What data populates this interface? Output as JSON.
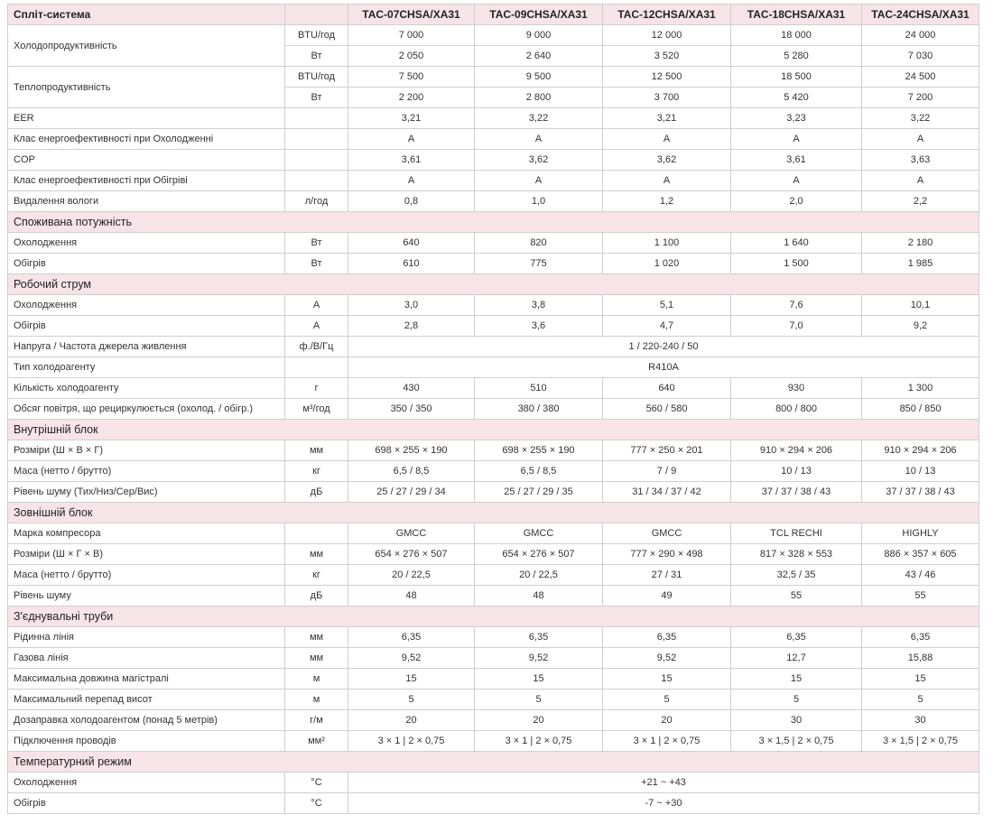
{
  "header": {
    "title": "Спліт-система",
    "models": [
      "TAC-07CHSA/XA31",
      "TAC-09CHSA/XA31",
      "TAC-12CHSA/XA31",
      "TAC-18CHSA/XA31",
      "TAC-24CHSA/XA31"
    ]
  },
  "rows": [
    {
      "type": "row",
      "label": "Холодопродуктивність",
      "unit": "BTU/год",
      "values": [
        "7 000",
        "9 000",
        "12 000",
        "18 000",
        "24 000"
      ],
      "group": "start"
    },
    {
      "type": "row",
      "unit": "Вт",
      "values": [
        "2 050",
        "2 640",
        "3 520",
        "5 280",
        "7 030"
      ],
      "group": "cont"
    },
    {
      "type": "row",
      "label": "Теплопродуктивність",
      "unit": "BTU/год",
      "values": [
        "7 500",
        "9 500",
        "12 500",
        "18 500",
        "24 500"
      ],
      "group": "start"
    },
    {
      "type": "row",
      "unit": "Вт",
      "values": [
        "2 200",
        "2 800",
        "3 700",
        "5 420",
        "7 200"
      ],
      "group": "cont"
    },
    {
      "type": "row",
      "label": "EER",
      "unit": "",
      "values": [
        "3,21",
        "3,22",
        "3,21",
        "3,23",
        "3,22"
      ]
    },
    {
      "type": "row",
      "label": "Клас енергоефективності при Охолодженні",
      "unit": "",
      "values": [
        "A",
        "A",
        "A",
        "A",
        "A"
      ]
    },
    {
      "type": "row",
      "label": "COP",
      "unit": "",
      "values": [
        "3,61",
        "3,62",
        "3,62",
        "3,61",
        "3,63"
      ]
    },
    {
      "type": "row",
      "label": "Клас енергоефективності при Обігріві",
      "unit": "",
      "values": [
        "A",
        "A",
        "A",
        "A",
        "A"
      ]
    },
    {
      "type": "row",
      "label": "Видалення вологи",
      "unit": "л/год",
      "values": [
        "0,8",
        "1,0",
        "1,2",
        "2,0",
        "2,2"
      ]
    },
    {
      "type": "section",
      "label": "Споживана потужність"
    },
    {
      "type": "row",
      "label": "Охолодження",
      "unit": "Вт",
      "values": [
        "640",
        "820",
        "1 100",
        "1 640",
        "2 180"
      ]
    },
    {
      "type": "row",
      "label": "Обігрів",
      "unit": "Вт",
      "values": [
        "610",
        "775",
        "1 020",
        "1 500",
        "1 985"
      ]
    },
    {
      "type": "section",
      "label": "Робочий струм"
    },
    {
      "type": "row",
      "label": "Охолодження",
      "unit": "А",
      "values": [
        "3,0",
        "3,8",
        "5,1",
        "7,6",
        "10,1"
      ]
    },
    {
      "type": "row",
      "label": "Обігрів",
      "unit": "А",
      "values": [
        "2,8",
        "3,6",
        "4,7",
        "7,0",
        "9,2"
      ]
    },
    {
      "type": "row",
      "label": "Напруга / Частота джерела живлення",
      "unit": "ф./В/Гц",
      "merged": "1 / 220-240 / 50"
    },
    {
      "type": "row",
      "label": "Тип холодоагенту",
      "unit": "",
      "merged": "R410A"
    },
    {
      "type": "row",
      "label": "Кількість холодоагенту",
      "unit": "г",
      "values": [
        "430",
        "510",
        "640",
        "930",
        "1 300"
      ]
    },
    {
      "type": "row",
      "label": "Обсяг повітря, що рециркулюється (охолод. / обігр.)",
      "unit": "м³/год",
      "values": [
        "350 / 350",
        "380 / 380",
        "560 / 580",
        "800 / 800",
        "850 / 850"
      ]
    },
    {
      "type": "section",
      "label": "Внутрішній блок"
    },
    {
      "type": "row",
      "label": "Розміри (Ш × В × Г)",
      "unit": "мм",
      "values": [
        "698 × 255 × 190",
        "698 × 255 × 190",
        "777 × 250 × 201",
        "910 × 294 × 206",
        "910 × 294 × 206"
      ]
    },
    {
      "type": "row",
      "label": "Маса (нетто / брутто)",
      "unit": "кг",
      "values": [
        "6,5 / 8,5",
        "6,5 / 8,5",
        "7 / 9",
        "10 / 13",
        "10 / 13"
      ]
    },
    {
      "type": "row",
      "label": "Рівень шуму (Тих/Низ/Сер/Вис)",
      "unit": "дБ",
      "values": [
        "25 / 27 / 29 / 34",
        "25 / 27 / 29 / 35",
        "31 / 34 / 37 / 42",
        "37 / 37 / 38 / 43",
        "37 / 37 / 38 / 43"
      ]
    },
    {
      "type": "section",
      "label": "Зовнішній блок"
    },
    {
      "type": "row",
      "label": "Марка компресора",
      "unit": "",
      "values": [
        "GMCC",
        "GMCC",
        "GMCC",
        "TCL RECHI",
        "HIGHLY"
      ]
    },
    {
      "type": "row",
      "label": "Розміри (Ш × Г × В)",
      "unit": "мм",
      "values": [
        "654 × 276 × 507",
        "654 × 276 × 507",
        "777 × 290 × 498",
        "817 × 328 × 553",
        "886 × 357 × 605"
      ]
    },
    {
      "type": "row",
      "label": "Маса (нетто / брутто)",
      "unit": "кг",
      "values": [
        "20 / 22,5",
        "20 / 22,5",
        "27 / 31",
        "32,5 / 35",
        "43 / 46"
      ]
    },
    {
      "type": "row",
      "label": "Рівень шуму",
      "unit": "дБ",
      "values": [
        "48",
        "48",
        "49",
        "55",
        "55"
      ]
    },
    {
      "type": "section",
      "label": "З'єднувальні труби"
    },
    {
      "type": "row",
      "label": "Рідинна лінія",
      "unit": "мм",
      "values": [
        "6,35",
        "6,35",
        "6,35",
        "6,35",
        "6,35"
      ]
    },
    {
      "type": "row",
      "label": "Газова лінія",
      "unit": "мм",
      "values": [
        "9,52",
        "9,52",
        "9,52",
        "12,7",
        "15,88"
      ]
    },
    {
      "type": "row",
      "label": "Максимальна довжина магістралі",
      "unit": "м",
      "values": [
        "15",
        "15",
        "15",
        "15",
        "15"
      ]
    },
    {
      "type": "row",
      "label": "Максимальний перепад висот",
      "unit": "м",
      "values": [
        "5",
        "5",
        "5",
        "5",
        "5"
      ]
    },
    {
      "type": "row",
      "label": "Дозаправка холодоагентом (понад 5 метрів)",
      "unit": "г/м",
      "values": [
        "20",
        "20",
        "20",
        "30",
        "30"
      ]
    },
    {
      "type": "row",
      "label": "Підключення проводів",
      "unit": "мм²",
      "values": [
        "3 × 1 | 2 × 0,75",
        "3 × 1 | 2 × 0,75",
        "3 × 1 | 2 × 0,75",
        "3 × 1,5 | 2 × 0,75",
        "3 × 1,5 | 2 × 0,75"
      ]
    },
    {
      "type": "section",
      "label": "Температурний режим"
    },
    {
      "type": "row",
      "label": "Охолодження",
      "unit": "°С",
      "merged": "+21 ~ +43"
    },
    {
      "type": "row",
      "label": "Обігрів",
      "unit": "°С",
      "merged": "-7 ~ +30"
    }
  ]
}
